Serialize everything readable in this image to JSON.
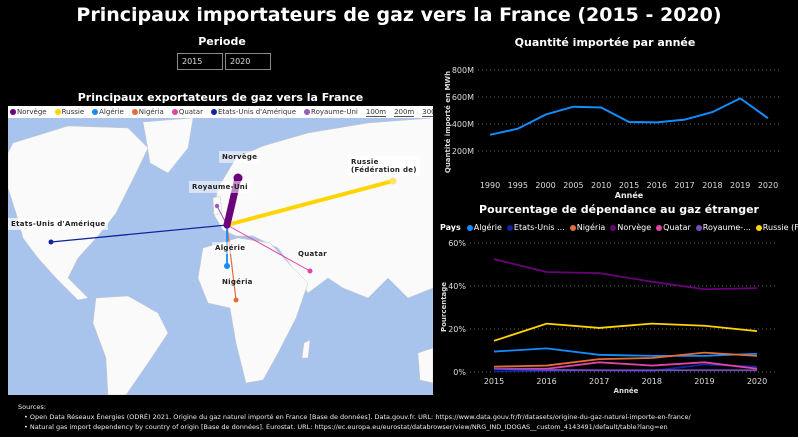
{
  "title": "Principaux importateurs de gaz vers la France (2015 - 2020)",
  "periode": {
    "label": "Periode",
    "start": "2015",
    "end": "2020"
  },
  "map": {
    "title": "Principaux exportateurs de gaz vers la France",
    "legend": [
      {
        "name": "Norvège",
        "color": "#6B007B"
      },
      {
        "name": "Russie",
        "color": "#FFD400"
      },
      {
        "name": "Algérie",
        "color": "#118DFF"
      },
      {
        "name": "Nigéria",
        "color": "#E66C37"
      },
      {
        "name": "Quatar",
        "color": "#E044A7"
      },
      {
        "name": "Etats-Unis d'Amérique",
        "color": "#12239E"
      },
      {
        "name": "Royaume-Uni",
        "color": "#9B59B6"
      }
    ],
    "scale": [
      "100m",
      "200m",
      "300m"
    ],
    "labels": {
      "norvege": "Norvège",
      "russie": "Russie (Fédération de)",
      "royaume_uni": "Royaume-Uni",
      "etats_unis": "Etats-Unis d'Amérique",
      "algerie": "Algérie",
      "quatar": "Quatar",
      "nigeria": "Nigéria"
    }
  },
  "chart_data": [
    {
      "type": "line",
      "title": "Quantité importée par année",
      "xlabel": "Année",
      "ylabel": "Quantité importé en MWh",
      "categories": [
        "1990",
        "1995",
        "2000",
        "2005",
        "2010",
        "2015",
        "2016",
        "2017",
        "2018",
        "2019",
        "2020"
      ],
      "values": [
        320,
        365,
        470,
        528,
        522,
        415,
        412,
        432,
        488,
        590,
        443
      ],
      "unit": "M",
      "ylim": [
        0,
        800
      ],
      "yticks": [
        "200M",
        "400M",
        "600M",
        "800M"
      ],
      "color": "#118DFF",
      "grid": true
    },
    {
      "type": "line",
      "title": "Pourcentage de dépendance au gaz étranger",
      "legend_title": "Pays",
      "xlabel": "Année",
      "ylabel": "Pourcentage",
      "categories": [
        "2015",
        "2016",
        "2017",
        "2018",
        "2019",
        "2020"
      ],
      "ylim": [
        0,
        60
      ],
      "yticks": [
        "0%",
        "20%",
        "40%",
        "60%"
      ],
      "grid": true,
      "legend_position": "top",
      "series": [
        {
          "name": "Algérie",
          "color": "#118DFF",
          "values": [
            9.5,
            11,
            8,
            7.5,
            7.5,
            8.5
          ]
        },
        {
          "name": "Etats-Unis ...",
          "color": "#12239E",
          "values": [
            0.3,
            0.5,
            0.8,
            0.5,
            3.5,
            2.5
          ]
        },
        {
          "name": "Nigéria",
          "color": "#E66C37",
          "values": [
            2.5,
            3,
            6,
            6.5,
            9,
            7.5
          ]
        },
        {
          "name": "Norvège",
          "color": "#6B007B",
          "values": [
            52.5,
            46.5,
            46,
            42,
            38.5,
            39
          ]
        },
        {
          "name": "Quatar",
          "color": "#E044A7",
          "values": [
            1.5,
            1.5,
            4.5,
            3,
            4.5,
            1.5
          ]
        },
        {
          "name": "Royaume-...",
          "color": "#744EC2",
          "values": [
            1.5,
            1,
            0.8,
            0.8,
            0.8,
            0.8
          ]
        },
        {
          "name": "Russie (Fé...",
          "color": "#FFD400",
          "values": [
            14.5,
            22.5,
            20.5,
            22.5,
            21.5,
            19
          ]
        }
      ]
    }
  ],
  "sources": {
    "heading": "Sources:",
    "items": [
      "• Open Data Réseaux Énergies (ODRÉ) 2021. Origine du gaz naturel importé en France [Base de données]. Data.gouv.fr. URL: https://www.data.gouv.fr/fr/datasets/origine-du-gaz-naturel-importe-en-france/",
      "• Natural gas import dependency by country of origin [Base de données]. Eurostat. URL: https://ec.europa.eu/eurostat/databrowser/view/NRG_IND_IDOGAS__custom_4143491/default/table?lang=en"
    ]
  }
}
